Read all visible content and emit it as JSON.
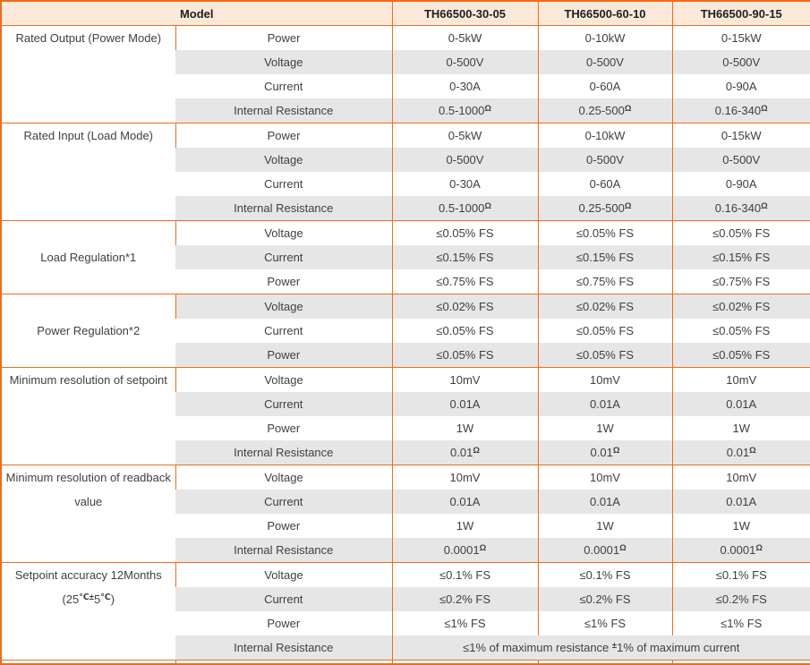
{
  "colors": {
    "border_orange": "#ed6d1e",
    "header_bg": "#fde9d9",
    "row_alt_bg": "#e7e6e6",
    "body_text": "#404040"
  },
  "table": {
    "header": {
      "model_label": "Model",
      "columns": [
        "TH66500-30-05",
        "TH66500-60-10",
        "TH66500-90-15"
      ]
    },
    "groups": [
      {
        "label": "Rated Output (Power Mode)",
        "rows": [
          {
            "param": "Power",
            "values": [
              "0-5kW",
              "0-10kW",
              "0-15kW"
            ]
          },
          {
            "param": "Voltage",
            "values": [
              "0-500V",
              "0-500V",
              "0-500V"
            ]
          },
          {
            "param": "Current",
            "values": [
              "0-30A",
              "0-60A",
              "0-90A"
            ]
          },
          {
            "param": "Internal Resistance",
            "values": [
              "0.5-1000^{Ω}",
              "0.25-500^{Ω}",
              "0.16-340^{Ω}"
            ]
          }
        ]
      },
      {
        "label": "Rated Input (Load Mode)",
        "rows": [
          {
            "param": "Power",
            "values": [
              "0-5kW",
              "0-10kW",
              "0-15kW"
            ]
          },
          {
            "param": "Voltage",
            "values": [
              "0-500V",
              "0-500V",
              "0-500V"
            ]
          },
          {
            "param": "Current",
            "values": [
              "0-30A",
              "0-60A",
              "0-90A"
            ]
          },
          {
            "param": "Internal Resistance",
            "values": [
              "0.5-1000^{Ω}",
              "0.25-500^{Ω}",
              "0.16-340^{Ω}"
            ]
          }
        ]
      },
      {
        "label": "Load Regulation*1",
        "rows": [
          {
            "param": "Voltage",
            "values": [
              "≤0.05% FS",
              "≤0.05% FS",
              "≤0.05% FS"
            ]
          },
          {
            "param": "Current",
            "values": [
              "≤0.15% FS",
              "≤0.15% FS",
              "≤0.15% FS"
            ]
          },
          {
            "param": "Power",
            "values": [
              "≤0.75% FS",
              "≤0.75% FS",
              "≤0.75% FS"
            ]
          }
        ]
      },
      {
        "label": "Power Regulation*2",
        "rows": [
          {
            "param": "Voltage",
            "values": [
              "≤0.02% FS",
              "≤0.02% FS",
              "≤0.02% FS"
            ]
          },
          {
            "param": "Current",
            "values": [
              "≤0.05% FS",
              "≤0.05% FS",
              "≤0.05% FS"
            ]
          },
          {
            "param": "Power",
            "values": [
              "≤0.05% FS",
              "≤0.05% FS",
              "≤0.05% FS"
            ]
          }
        ]
      },
      {
        "label": "Minimum resolution of setpoint",
        "rows": [
          {
            "param": "Voltage",
            "values": [
              "10mV",
              "10mV",
              "10mV"
            ]
          },
          {
            "param": "Current",
            "values": [
              "0.01A",
              "0.01A",
              "0.01A"
            ]
          },
          {
            "param": "Power",
            "values": [
              "1W",
              "1W",
              "1W"
            ]
          },
          {
            "param": "Internal Resistance",
            "values": [
              "0.01^{Ω}",
              "0.01^{Ω}",
              "0.01^{Ω}"
            ]
          }
        ]
      },
      {
        "label": "Minimum resolution of readback value",
        "rows": [
          {
            "param": "Voltage",
            "values": [
              "10mV",
              "10mV",
              "10mV"
            ]
          },
          {
            "param": "Current",
            "values": [
              "0.01A",
              "0.01A",
              "0.01A"
            ]
          },
          {
            "param": "Power",
            "values": [
              "1W",
              "1W",
              "1W"
            ]
          },
          {
            "param": "Internal Resistance",
            "values": [
              "0.0001^{Ω}",
              "0.0001^{Ω}",
              "0.0001^{Ω}"
            ]
          }
        ]
      },
      {
        "label": "Setpoint accuracy 12Months (25^{℃±}5^{℃})",
        "rows": [
          {
            "param": "Voltage",
            "values": [
              "≤0.1% FS",
              "≤0.1% FS",
              "≤0.1% FS"
            ]
          },
          {
            "param": "Current",
            "values": [
              "≤0.2% FS",
              "≤0.2% FS",
              "≤0.2% FS"
            ]
          },
          {
            "param": "Power",
            "values": [
              "≤1% FS",
              "≤1% FS",
              "≤1% FS"
            ]
          },
          {
            "param": "Internal Resistance",
            "merged_value": "≤1% of maximum resistance ^{±}1% of maximum current"
          }
        ]
      }
    ]
  }
}
